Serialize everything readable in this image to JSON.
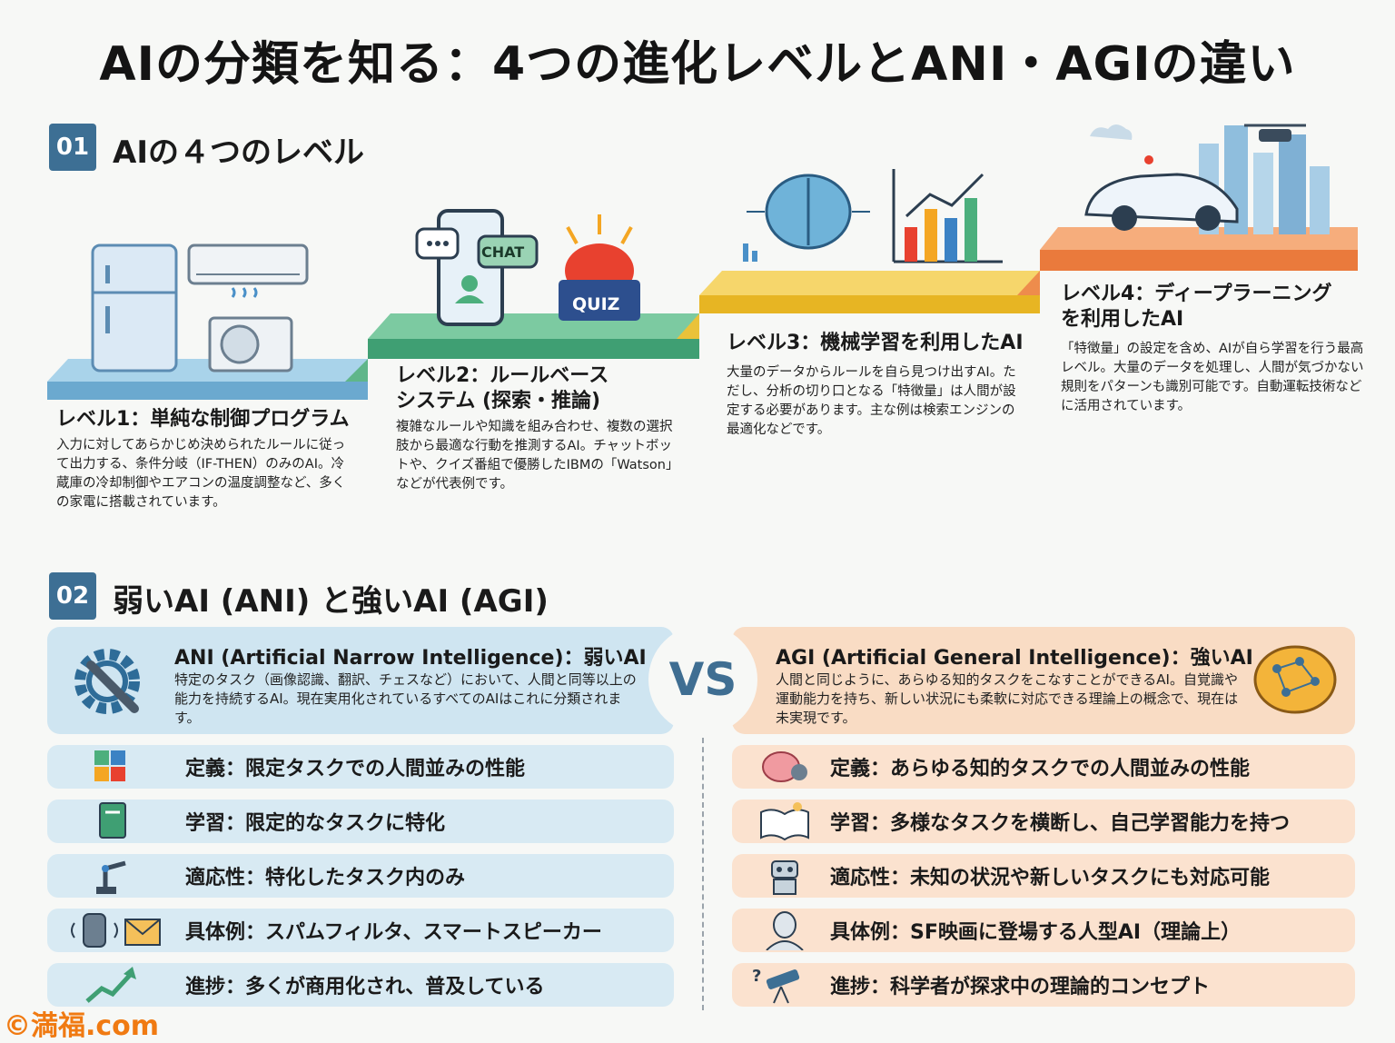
{
  "title": "AIの分類を知る：4つの進化レベルとANI・AGIの違い",
  "section1": {
    "num": "01",
    "title": "AIの４つのレベル",
    "levels": [
      {
        "title": "レベル1：単純な制御プログラム",
        "desc": "入力に対してあらかじめ決められたルールに従って出力する、条件分岐（IF-THEN）のみのAI。冷蔵庫の冷却制御やエアコンの温度調整など、多くの家電に搭載されています。"
      },
      {
        "title_line1": "レベル2：ルールベース",
        "title_line2": "システム (探索・推論)",
        "desc": "複雑なルールや知識を組み合わせ、複数の選択肢から最適な行動を推測するAI。チャットボットや、クイズ番組で優勝したIBMの「Watson」などが代表例です。"
      },
      {
        "title": "レベル3：機械学習を利用したAI",
        "desc": "大量のデータからルールを自ら見つけ出すAI。ただし、分析の切り口となる「特徴量」は人間が設定する必要があります。主な例は検索エンジンの最適化などです。"
      },
      {
        "title_line1": "レベル4：ディープラーニング",
        "title_line2": "を利用したAI",
        "desc": "「特徴量」の設定を含め、AIが自ら学習を行う最高レベル。大量のデータを処理し、人間が気づかない規則をパターンも識別可能です。自動運転技術などに活用されています。"
      }
    ],
    "icon_labels": {
      "chat": "CHAT",
      "quiz": "QUIZ"
    }
  },
  "section2": {
    "num": "02",
    "title": "弱いAI (ANI) と強いAI (AGI)",
    "vs": "VS",
    "ani": {
      "title": "ANI (Artificial Narrow Intelligence)：弱いAI",
      "desc": "特定のタスク（画像認識、翻訳、チェスなど）において、人間と同等以上の能力を持続するAI。現在実用化されているすべてのAIはこれに分類されます。",
      "rows": [
        {
          "icon": "puzzle-icon",
          "text": "定義：限定タスクでの人間並みの性能"
        },
        {
          "icon": "book-icon",
          "text": "学習：限定的なタスクに特化"
        },
        {
          "icon": "robot-arm-icon",
          "text": "適応性：特化したタスク内のみ"
        },
        {
          "icon": "speaker-mail-icon",
          "text": "具体例：スパムフィルタ、スマートスピーカー"
        },
        {
          "icon": "trend-up-icon",
          "text": "進捗：多くが商用化され、普及している"
        }
      ]
    },
    "agi": {
      "title": "AGI (Artificial General Intelligence)：強いAI",
      "desc": "人間と同じように、あらゆる知的タスクをこなすことができるAI。自覚識や運動能力を持ち、新しい状況にも柔軟に対応できる理論上の概念で、現在は未実現です。",
      "rows": [
        {
          "icon": "brain-gear-icon",
          "text": "定義：あらゆる知的タスクでの人間並みの性能"
        },
        {
          "icon": "open-book-icon",
          "text": "学習：多様なタスクを横断し、自己学習能力を持つ"
        },
        {
          "icon": "robot-icon",
          "text": "適応性：未知の状況や新しいタスクにも対応可能"
        },
        {
          "icon": "humanoid-icon",
          "text": "具体例：SF映画に登場する人型AI（理論上）"
        },
        {
          "icon": "telescope-icon",
          "text": "進捗：科学者が探求中の理論的コンセプト"
        }
      ]
    }
  },
  "watermark": "©満福.com",
  "colors": {
    "accent": "#3d6f94",
    "level1": "#7fb5d6",
    "level2": "#52b38a",
    "level3": "#f2c53d",
    "level4": "#f0894a",
    "ani_bg": "#d9eaf3",
    "agi_bg": "#fbe3cf"
  }
}
